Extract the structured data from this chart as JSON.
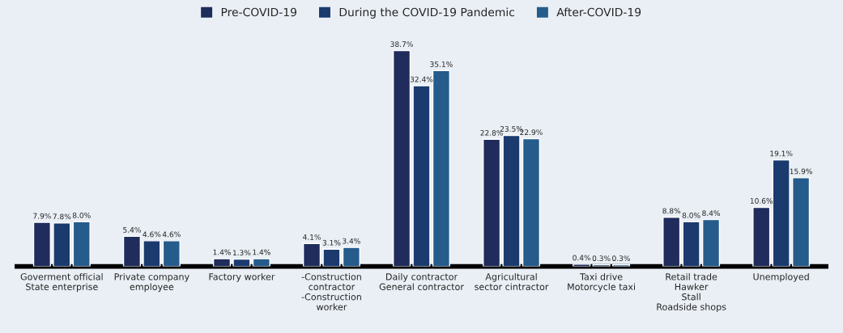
{
  "chart_data": {
    "type": "bar",
    "categories": [
      "Goverment official\nState enterprise",
      "Private company\nemployee",
      "Factory worker",
      "-Construction\ncontractor\n-Construction\nworker",
      "Daily contractor\nGeneral contractor",
      "Agricultural\nsector cintractor",
      "Taxi drive\nMotorcycle taxi",
      "Retail trade\nHawker\nStall\nRoadside shops",
      "Unemployed"
    ],
    "series": [
      {
        "name": "Pre-COVID-19",
        "color": "#1f2c5c",
        "values": [
          7.9,
          5.4,
          1.4,
          4.1,
          38.7,
          22.8,
          0.4,
          8.8,
          10.6
        ],
        "value_labels": [
          "7.9%",
          "5.4%",
          "1.4%",
          "4.1%",
          "38.7%",
          "22.8%",
          "0.4%",
          "8.8%",
          "10.6%"
        ]
      },
      {
        "name": "During the COVID-19 Pandemic",
        "color": "#1b3b6f",
        "values": [
          7.8,
          4.6,
          1.3,
          3.1,
          32.4,
          23.5,
          0.3,
          8.0,
          19.1
        ],
        "value_labels": [
          "7.8%",
          "4.6%",
          "1.3%",
          "3.1%",
          "32.4%",
          "23.5%",
          "0.3%",
          "8.0%",
          "19.1%"
        ]
      },
      {
        "name": "After-COVID-19",
        "color": "#255c8c",
        "values": [
          8.0,
          4.6,
          1.4,
          3.4,
          35.1,
          22.9,
          0.3,
          8.4,
          15.9
        ],
        "value_labels": [
          "8.0%",
          "4.6%",
          "1.4%",
          "3.4%",
          "35.1%",
          "22.9%",
          "0.3%",
          "8.4%",
          "15.9%"
        ]
      }
    ],
    "legend": "top",
    "grid": false
  }
}
